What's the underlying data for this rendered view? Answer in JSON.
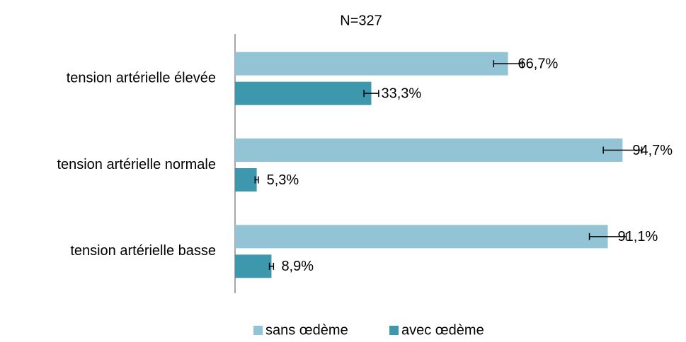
{
  "chart_data": {
    "type": "bar",
    "orientation": "horizontal",
    "title": "N=327",
    "categories": [
      "tension artérielle élevée",
      "tension artérielle normale",
      "tension artérielle basse"
    ],
    "series": [
      {
        "name": "sans œdème",
        "color": "#92c4d6",
        "values": [
          66.7,
          94.7,
          91.1
        ],
        "value_labels": [
          "66,7%",
          "94,7%",
          "91,1%"
        ],
        "errors": [
          3.5,
          4.7,
          4.5
        ]
      },
      {
        "name": "avec œdème",
        "color": "#3d97ad",
        "values": [
          33.3,
          5.3,
          8.9
        ],
        "value_labels": [
          "33,3%",
          "5,3%",
          "8,9%"
        ],
        "errors": [
          1.8,
          0.4,
          0.5
        ]
      }
    ],
    "xlim": [
      0,
      100
    ],
    "legend": "bottom"
  }
}
